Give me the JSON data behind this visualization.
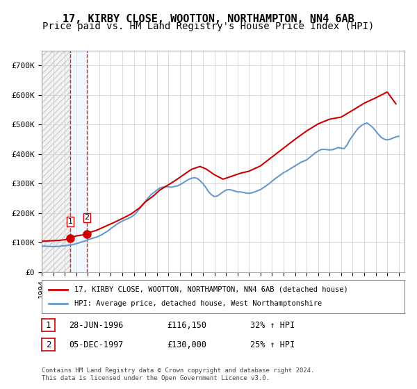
{
  "title": "17, KIRBY CLOSE, WOOTTON, NORTHAMPTON, NN4 6AB",
  "subtitle": "Price paid vs. HM Land Registry's House Price Index (HPI)",
  "ylabel": "",
  "ylim": [
    0,
    750000
  ],
  "yticks": [
    0,
    100000,
    200000,
    300000,
    400000,
    500000,
    600000,
    700000
  ],
  "ytick_labels": [
    "£0",
    "£100K",
    "£200K",
    "£300K",
    "£400K",
    "£500K",
    "£600K",
    "£700K"
  ],
  "xlim_start": 1994.0,
  "xlim_end": 2025.5,
  "hatch_region_end": 1996.5,
  "transaction1": {
    "date": 1996.49,
    "price": 116150,
    "label": "1",
    "pct": "32%"
  },
  "transaction2": {
    "date": 1997.92,
    "price": 130000,
    "label": "2",
    "pct": "25%"
  },
  "legend_line1": "17, KIRBY CLOSE, WOOTTON, NORTHAMPTON, NN4 6AB (detached house)",
  "legend_line2": "HPI: Average price, detached house, West Northamptonshire",
  "table_rows": [
    {
      "num": "1",
      "date": "28-JUN-1996",
      "price": "£116,150",
      "pct": "32% ↑ HPI"
    },
    {
      "num": "2",
      "date": "05-DEC-1997",
      "price": "£130,000",
      "pct": "25% ↑ HPI"
    }
  ],
  "footnote": "Contains HM Land Registry data © Crown copyright and database right 2024.\nThis data is licensed under the Open Government Licence v3.0.",
  "hpi_color": "#6699cc",
  "price_color": "#cc0000",
  "hatch_color": "#cccccc",
  "grid_color": "#cccccc",
  "background_hatch_color": "#e8e8e8",
  "vline_color": "#cc0000",
  "title_fontsize": 11,
  "subtitle_fontsize": 10,
  "tick_fontsize": 8,
  "hpi_data_x": [
    1994.0,
    1994.25,
    1994.5,
    1994.75,
    1995.0,
    1995.25,
    1995.5,
    1995.75,
    1996.0,
    1996.25,
    1996.5,
    1996.75,
    1997.0,
    1997.25,
    1997.5,
    1997.75,
    1998.0,
    1998.25,
    1998.5,
    1998.75,
    1999.0,
    1999.25,
    1999.5,
    1999.75,
    2000.0,
    2000.25,
    2000.5,
    2000.75,
    2001.0,
    2001.25,
    2001.5,
    2001.75,
    2002.0,
    2002.25,
    2002.5,
    2002.75,
    2003.0,
    2003.25,
    2003.5,
    2003.75,
    2004.0,
    2004.25,
    2004.5,
    2004.75,
    2005.0,
    2005.25,
    2005.5,
    2005.75,
    2006.0,
    2006.25,
    2006.5,
    2006.75,
    2007.0,
    2007.25,
    2007.5,
    2007.75,
    2008.0,
    2008.25,
    2008.5,
    2008.75,
    2009.0,
    2009.25,
    2009.5,
    2009.75,
    2010.0,
    2010.25,
    2010.5,
    2010.75,
    2011.0,
    2011.25,
    2011.5,
    2011.75,
    2012.0,
    2012.25,
    2012.5,
    2012.75,
    2013.0,
    2013.25,
    2013.5,
    2013.75,
    2014.0,
    2014.25,
    2014.5,
    2014.75,
    2015.0,
    2015.25,
    2015.5,
    2015.75,
    2016.0,
    2016.25,
    2016.5,
    2016.75,
    2017.0,
    2017.25,
    2017.5,
    2017.75,
    2018.0,
    2018.25,
    2018.5,
    2018.75,
    2019.0,
    2019.25,
    2019.5,
    2019.75,
    2020.0,
    2020.25,
    2020.5,
    2020.75,
    2021.0,
    2021.25,
    2021.5,
    2021.75,
    2022.0,
    2022.25,
    2022.5,
    2022.75,
    2023.0,
    2023.25,
    2023.5,
    2023.75,
    2024.0,
    2024.25,
    2024.5,
    2024.75,
    2025.0
  ],
  "hpi_data_y": [
    88000,
    88500,
    88000,
    87500,
    87000,
    87500,
    88000,
    89000,
    90000,
    91000,
    92000,
    94000,
    97000,
    100000,
    103000,
    106000,
    110000,
    113000,
    116000,
    119000,
    123000,
    128000,
    134000,
    140000,
    148000,
    155000,
    162000,
    168000,
    173000,
    178000,
    182000,
    187000,
    193000,
    203000,
    215000,
    228000,
    240000,
    252000,
    263000,
    270000,
    278000,
    285000,
    288000,
    290000,
    289000,
    288000,
    290000,
    292000,
    296000,
    302000,
    308000,
    314000,
    318000,
    320000,
    318000,
    310000,
    300000,
    287000,
    272000,
    262000,
    256000,
    258000,
    265000,
    272000,
    278000,
    280000,
    278000,
    275000,
    272000,
    272000,
    270000,
    268000,
    267000,
    269000,
    272000,
    276000,
    280000,
    286000,
    293000,
    300000,
    308000,
    316000,
    323000,
    330000,
    337000,
    342000,
    348000,
    354000,
    360000,
    366000,
    372000,
    376000,
    380000,
    388000,
    396000,
    404000,
    410000,
    415000,
    416000,
    415000,
    414000,
    415000,
    418000,
    422000,
    420000,
    418000,
    430000,
    448000,
    462000,
    476000,
    488000,
    496000,
    502000,
    505000,
    498000,
    490000,
    478000,
    466000,
    456000,
    450000,
    448000,
    450000,
    454000,
    458000,
    460000
  ],
  "price_data_x": [
    1994.0,
    1994.5,
    1995.0,
    1995.5,
    1996.0,
    1996.49,
    1996.75,
    1997.0,
    1997.5,
    1997.92,
    1998.25,
    1998.75,
    1999.5,
    2000.25,
    2001.0,
    2001.75,
    2002.5,
    2003.0,
    2003.75,
    2004.25,
    2004.75,
    2005.5,
    2006.25,
    2007.0,
    2007.5,
    2007.75,
    2008.25,
    2009.0,
    2009.75,
    2010.5,
    2011.25,
    2012.0,
    2013.0,
    2014.0,
    2015.0,
    2016.0,
    2017.0,
    2018.0,
    2019.0,
    2020.0,
    2021.0,
    2022.0,
    2023.0,
    2024.0,
    2024.75
  ],
  "price_data_y": [
    105000,
    106000,
    107000,
    108000,
    110000,
    116150,
    120000,
    123000,
    126000,
    130000,
    136000,
    142000,
    155000,
    168000,
    182000,
    197000,
    218000,
    238000,
    260000,
    278000,
    290000,
    308000,
    328000,
    348000,
    355000,
    358000,
    350000,
    330000,
    315000,
    325000,
    335000,
    342000,
    360000,
    390000,
    420000,
    450000,
    478000,
    502000,
    518000,
    525000,
    548000,
    572000,
    590000,
    610000,
    570000
  ]
}
